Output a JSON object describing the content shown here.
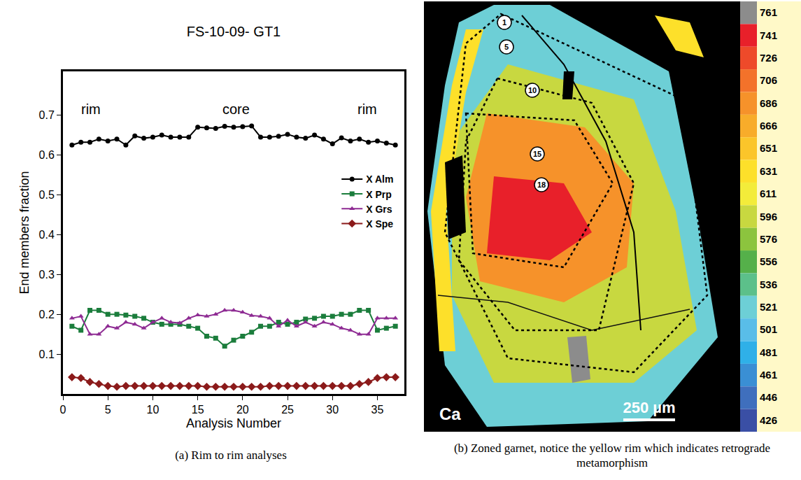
{
  "chart_data": {
    "type": "line",
    "title": "FS-10-09- GT1",
    "x_label": "Analysis Number",
    "y_label": "End members fraction",
    "x": [
      1,
      2,
      3,
      4,
      5,
      6,
      7,
      8,
      9,
      10,
      11,
      12,
      13,
      14,
      15,
      16,
      17,
      18,
      19,
      20,
      21,
      22,
      23,
      24,
      25,
      26,
      27,
      28,
      29,
      30,
      31,
      32,
      33,
      34,
      35,
      36,
      37
    ],
    "series": [
      {
        "name": "X Alm",
        "color": "#000000",
        "marker": "circle",
        "values": [
          0.625,
          0.632,
          0.632,
          0.64,
          0.635,
          0.64,
          0.625,
          0.648,
          0.642,
          0.645,
          0.65,
          0.645,
          0.645,
          0.645,
          0.67,
          0.668,
          0.667,
          0.672,
          0.67,
          0.671,
          0.673,
          0.645,
          0.645,
          0.647,
          0.652,
          0.645,
          0.642,
          0.65,
          0.64,
          0.628,
          0.643,
          0.635,
          0.64,
          0.632,
          0.635,
          0.63,
          0.625
        ]
      },
      {
        "name": "X Prp",
        "color": "#1b7d3c",
        "marker": "square",
        "values": [
          0.17,
          0.16,
          0.21,
          0.21,
          0.2,
          0.2,
          0.198,
          0.195,
          0.19,
          0.18,
          0.175,
          0.175,
          0.175,
          0.17,
          0.165,
          0.145,
          0.14,
          0.12,
          0.135,
          0.145,
          0.155,
          0.17,
          0.17,
          0.18,
          0.175,
          0.18,
          0.188,
          0.19,
          0.195,
          0.195,
          0.2,
          0.2,
          0.21,
          0.21,
          0.16,
          0.165,
          0.17
        ]
      },
      {
        "name": "X Grs",
        "color": "#8e2b93",
        "marker": "triangle-up",
        "values": [
          0.19,
          0.195,
          0.15,
          0.15,
          0.17,
          0.165,
          0.18,
          0.175,
          0.165,
          0.18,
          0.19,
          0.18,
          0.178,
          0.19,
          0.198,
          0.195,
          0.2,
          0.21,
          0.21,
          0.205,
          0.197,
          0.195,
          0.19,
          0.17,
          0.185,
          0.17,
          0.18,
          0.17,
          0.18,
          0.175,
          0.165,
          0.16,
          0.15,
          0.15,
          0.19,
          0.19,
          0.19
        ]
      },
      {
        "name": "X Spe",
        "color": "#8b1a1a",
        "marker": "diamond",
        "values": [
          0.042,
          0.04,
          0.03,
          0.025,
          0.02,
          0.018,
          0.02,
          0.02,
          0.02,
          0.02,
          0.02,
          0.02,
          0.02,
          0.02,
          0.02,
          0.018,
          0.018,
          0.018,
          0.018,
          0.018,
          0.018,
          0.018,
          0.02,
          0.02,
          0.02,
          0.02,
          0.02,
          0.02,
          0.02,
          0.02,
          0.02,
          0.02,
          0.025,
          0.03,
          0.04,
          0.042,
          0.042
        ]
      }
    ],
    "annotations": [
      {
        "text": "rim",
        "x": 3.1,
        "y": 0.715
      },
      {
        "text": "core",
        "x": 19.3,
        "y": 0.715
      },
      {
        "text": "rim",
        "x": 33.9,
        "y": 0.715
      }
    ],
    "xlim": [
      0,
      38
    ],
    "xticks": [
      0,
      5,
      10,
      15,
      20,
      25,
      30,
      35
    ],
    "ylim": [
      0,
      0.81
    ],
    "yticks": [
      0.1,
      0.2,
      0.3,
      0.4,
      0.5,
      0.6,
      0.7
    ],
    "grid": false,
    "legend": "upper right"
  },
  "map_panel": {
    "element": "Ca",
    "scale_bar": "250 µm",
    "points": [
      1,
      5,
      10,
      15,
      18
    ],
    "colorbar": {
      "ticks": [
        761,
        741,
        726,
        706,
        686,
        666,
        651,
        631,
        611,
        596,
        576,
        556,
        536,
        521,
        501,
        481,
        461,
        446,
        426
      ],
      "colors": [
        "#8c8c8c",
        "#e8202a",
        "#ee4a2a",
        "#f3722a",
        "#f6922a",
        "#f8ac2a",
        "#fbc52a",
        "#fde02a",
        "#f3ec3a",
        "#c8d840",
        "#8cc43e",
        "#55b04a",
        "#5cc08a",
        "#6dcfd6",
        "#59bde8",
        "#2fb0e8",
        "#3a8fd4",
        "#3f6fbd",
        "#3a4fa5"
      ]
    }
  },
  "captions": [
    "(a) Rim to rim analyses",
    "(b) Zoned garnet, notice the yellow rim which indicates retrograde metamorphism"
  ]
}
